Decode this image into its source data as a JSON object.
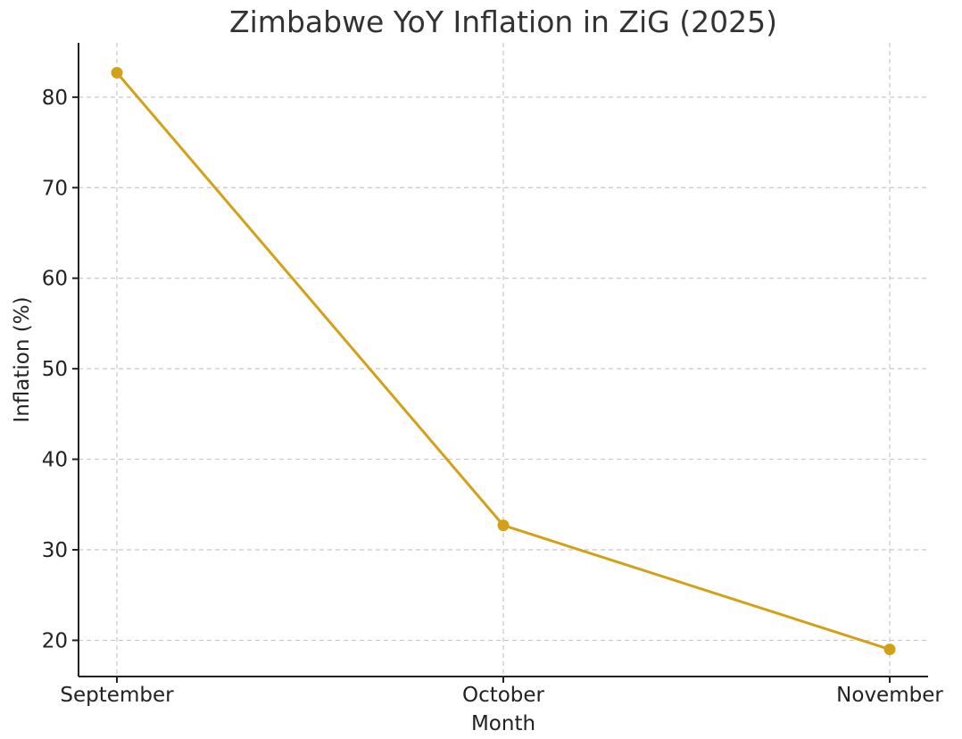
{
  "chart_data": {
    "type": "line",
    "title": "Zimbabwe YoY Inflation in ZiG (2025)",
    "xlabel": "Month",
    "ylabel": "Inflation (%)",
    "categories": [
      "September",
      "October",
      "November"
    ],
    "series": [
      {
        "values": [
          82.7,
          32.7,
          19.0
        ],
        "color": "#d4a017"
      }
    ],
    "ylim": [
      16.0,
      86.0
    ],
    "yticks": [
      20,
      30,
      40,
      50,
      60,
      70,
      80
    ],
    "grid": true,
    "marker": "circle"
  }
}
